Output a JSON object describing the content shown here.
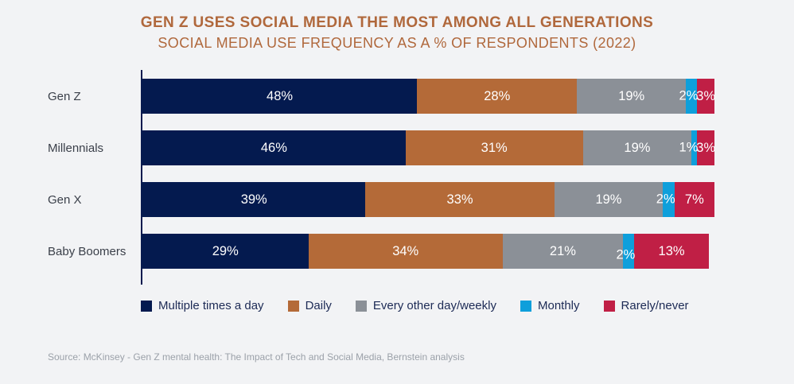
{
  "header": {
    "title": "GEN Z USES SOCIAL MEDIA THE MOST AMONG ALL GENERATIONS",
    "subtitle": "SOCIAL MEDIA USE FREQUENCY AS A % OF RESPONDENTS (2022)"
  },
  "source_note": "Source: McKinsey - Gen Z mental health: The Impact of Tech and Social Media, Bernstein analysis",
  "colors": {
    "background": "#f2f3f5",
    "title_text": "#b0683c",
    "axis_line": "#041a4f",
    "category_label_text": "#3a3f49",
    "legend_text": "#1c2a55",
    "source_text": "#9ba1a9",
    "bar_value_text": "#ffffff"
  },
  "chart_data": {
    "type": "bar",
    "orientation": "horizontal-stacked",
    "title": "GEN Z USES SOCIAL MEDIA THE MOST AMONG ALL GENERATIONS",
    "subtitle": "SOCIAL MEDIA USE FREQUENCY AS A % OF RESPONDENTS (2022)",
    "categories": [
      "Gen Z",
      "Millennials",
      "Gen X",
      "Baby Boomers"
    ],
    "series": [
      {
        "name": "Multiple times a day",
        "color": "#041a4f",
        "values": [
          48,
          46,
          39,
          29
        ]
      },
      {
        "name": "Daily",
        "color": "#b46a38",
        "values": [
          28,
          31,
          33,
          34
        ]
      },
      {
        "name": "Every other day/weekly",
        "color": "#8b9097",
        "values": [
          19,
          19,
          19,
          21
        ]
      },
      {
        "name": "Monthly",
        "color": "#0e9fdb",
        "values": [
          2,
          1,
          2,
          2
        ]
      },
      {
        "name": "Rarely/never",
        "color": "#c01f45",
        "values": [
          3,
          3,
          7,
          13
        ]
      }
    ],
    "value_suffix": "%",
    "xlim": [
      0,
      100
    ],
    "grid": false,
    "legend_position": "bottom"
  }
}
